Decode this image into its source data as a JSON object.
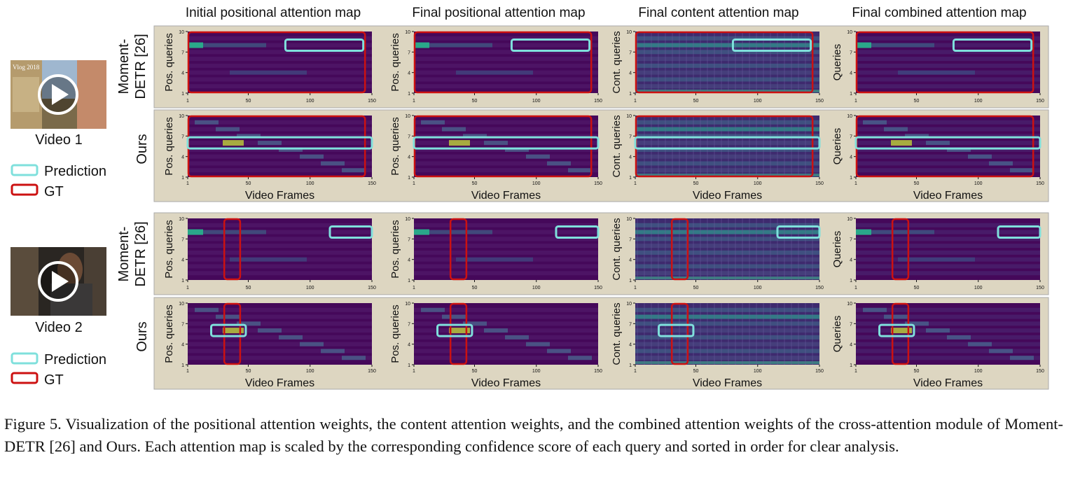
{
  "columns": [
    {
      "title": "Initial positional attention map",
      "ylabel": "Pos. queries"
    },
    {
      "title": "Final positional attention map",
      "ylabel": "Pos. queries"
    },
    {
      "title": "Final content attention map",
      "ylabel": "Cont. queries"
    },
    {
      "title": "Final combined attention map",
      "ylabel": "Queries"
    }
  ],
  "row_labels": [
    "Moment-DETR [26]",
    "Ours"
  ],
  "row_label_lines": [
    "Moment-",
    "DETR [26]"
  ],
  "x_axis_label": "Video Frames",
  "x_ticks": [
    "1",
    "50",
    "100",
    "150"
  ],
  "y_ticks": [
    "1",
    "4",
    "7",
    "10"
  ],
  "videos": [
    {
      "label": "Video 1"
    },
    {
      "label": "Video 2"
    }
  ],
  "thumb_text": "Vlog 2018",
  "legend": [
    {
      "label": "Prediction",
      "color": "#7fe0dc"
    },
    {
      "label": "GT",
      "color": "#cc1111"
    }
  ],
  "colors": {
    "panel_bg": "#ddd6c1",
    "map_base": "#45085a",
    "prediction": "#7fe0dc",
    "gt": "#cc1111"
  },
  "chart_data": {
    "type": "heatmap",
    "x_range": [
      1,
      150
    ],
    "y_range": [
      1,
      10
    ],
    "video1": {
      "gt_frames": [
        1,
        145
      ],
      "moment_detr_prediction": {
        "frames": [
          80,
          143
        ],
        "query": 8
      },
      "ours_prediction": {
        "frames": [
          1,
          150
        ],
        "query": 6
      }
    },
    "video2": {
      "gt_frames": [
        30,
        44
      ],
      "moment_detr_prediction": {
        "frames": [
          116,
          150
        ],
        "query": 8
      },
      "ours_prediction": {
        "frames": [
          20,
          48
        ],
        "query": 6
      }
    }
  },
  "caption": "Figure 5. Visualization of the positional attention weights, the content attention weights, and the combined attention weights of the cross-attention module of Moment-DETR [26] and Ours. Each attention map is scaled by the corresponding confidence score of each query and sorted in order for clear analysis."
}
